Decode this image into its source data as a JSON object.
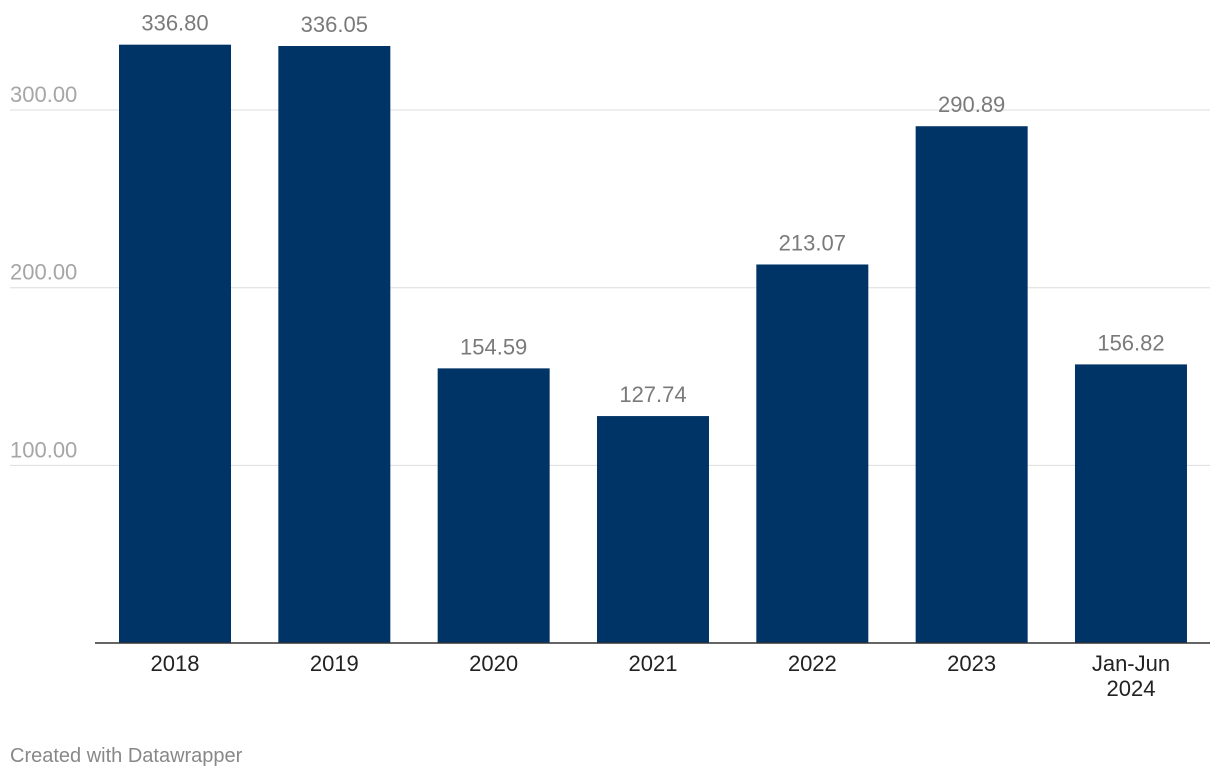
{
  "chart_data": {
    "type": "bar",
    "categories": [
      "2018",
      "2019",
      "2020",
      "2021",
      "2022",
      "2023",
      "Jan-Jun 2024"
    ],
    "values": [
      336.8,
      336.05,
      154.59,
      127.74,
      213.07,
      290.89,
      156.82
    ],
    "value_labels": [
      "336.80",
      "336.05",
      "154.59",
      "127.74",
      "213.07",
      "290.89",
      "156.82"
    ],
    "y_ticks": [
      100,
      200,
      300
    ],
    "y_tick_labels": [
      "100.00",
      "200.00",
      "300.00"
    ],
    "ylim": [
      0,
      360
    ],
    "grid": true,
    "bar_color": "#003366",
    "title": "",
    "xlabel": "",
    "ylabel": ""
  },
  "footer": {
    "credit": "Created with Datawrapper"
  }
}
